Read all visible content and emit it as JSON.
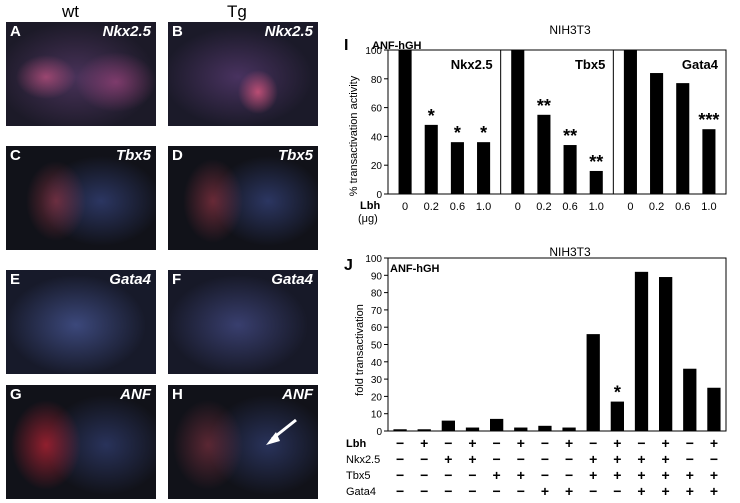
{
  "columns": {
    "wt": "wt",
    "tg": "Tg"
  },
  "panels": [
    {
      "letter": "A",
      "gene": "Nkx2.5"
    },
    {
      "letter": "B",
      "gene": "Nkx2.5"
    },
    {
      "letter": "C",
      "gene": "Tbx5"
    },
    {
      "letter": "D",
      "gene": "Tbx5"
    },
    {
      "letter": "E",
      "gene": "Gata4"
    },
    {
      "letter": "F",
      "gene": "Gata4"
    },
    {
      "letter": "G",
      "gene": "ANF"
    },
    {
      "letter": "H",
      "gene": "ANF"
    }
  ],
  "chartI": {
    "panel_letter": "I",
    "cell_line": "NIH3T3",
    "reporter": "ANF-hGH",
    "ylabel": "% transactivation activity",
    "xlabel_row": "Lbh",
    "xlabel_unit": "(μg)"
  },
  "chartJ": {
    "panel_letter": "J",
    "cell_line": "NIH3T3",
    "reporter": "ANF-hGH",
    "ylabel": "fold transactivation",
    "row_labels": [
      "Lbh",
      "Nkx2.5",
      "Tbx5",
      "Gata4"
    ]
  },
  "chart_data": [
    {
      "type": "bar",
      "title": "NIH3T3",
      "ylabel": "% transactivation activity",
      "xlabel": "Lbh (μg)",
      "ylim": [
        0,
        100
      ],
      "yticks": [
        0,
        20,
        40,
        60,
        80,
        100
      ],
      "groups": [
        {
          "name": "Nkx2.5",
          "categories": [
            "0",
            "0.2",
            "0.6",
            "1.0"
          ],
          "values": [
            100,
            48,
            36,
            36
          ],
          "significance": [
            "",
            "*",
            "*",
            "*"
          ]
        },
        {
          "name": "Tbx5",
          "categories": [
            "0",
            "0.2",
            "0.6",
            "1.0"
          ],
          "values": [
            100,
            55,
            34,
            16
          ],
          "significance": [
            "",
            "**",
            "**",
            "**"
          ]
        },
        {
          "name": "Gata4",
          "categories": [
            "0",
            "0.2",
            "0.6",
            "1.0"
          ],
          "values": [
            100,
            84,
            77,
            45
          ],
          "significance": [
            "",
            "",
            "",
            "***"
          ]
        }
      ]
    },
    {
      "type": "bar",
      "title": "NIH3T3",
      "ylabel": "fold transactivation",
      "ylim": [
        0,
        100
      ],
      "yticks": [
        0,
        10,
        20,
        30,
        40,
        50,
        60,
        70,
        80,
        90,
        100
      ],
      "values": [
        1,
        1,
        6,
        2,
        7,
        2,
        3,
        2,
        56,
        17,
        92,
        89,
        36,
        25
      ],
      "significance": [
        "",
        "",
        "",
        "",
        "",
        "",
        "",
        "",
        "",
        "*",
        "",
        "",
        "",
        ""
      ],
      "conditions": {
        "Lbh": [
          "-",
          "+",
          "-",
          "+",
          "-",
          "+",
          "-",
          "+",
          "-",
          "+",
          "-",
          "+",
          "-",
          "+"
        ],
        "Nkx2.5": [
          "-",
          "-",
          "+",
          "+",
          "-",
          "-",
          "-",
          "-",
          "+",
          "+",
          "+",
          "+",
          "-",
          "-"
        ],
        "Tbx5": [
          "-",
          "-",
          "-",
          "-",
          "+",
          "+",
          "-",
          "-",
          "+",
          "+",
          "+",
          "+",
          "+",
          "+"
        ],
        "Gata4": [
          "-",
          "-",
          "-",
          "-",
          "-",
          "-",
          "+",
          "+",
          "-",
          "-",
          "+",
          "+",
          "+",
          "+"
        ]
      }
    }
  ]
}
